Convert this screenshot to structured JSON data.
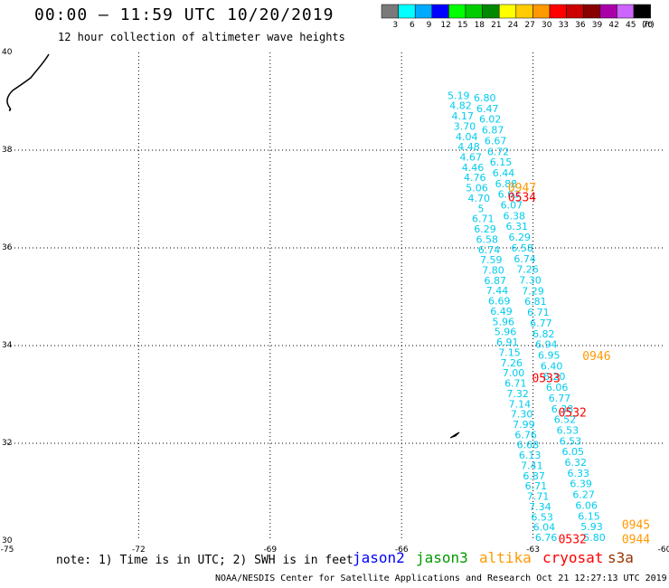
{
  "title": "00:00 – 11:59 UTC 10/20/2019",
  "subtitle": "12 hour collection of altimeter wave heights",
  "footer": "NOAA/NESDIS Center for Satellite Applications and Research    Oct 21 12:27:13 UTC 2019",
  "note": "note: 1) Time is in UTC; 2) SWH is in feet",
  "satellites": [
    {
      "name": "jason2",
      "color": "#0000ff"
    },
    {
      "name": "jason3",
      "color": "#009900"
    },
    {
      "name": "altika",
      "color": "#ff9900"
    },
    {
      "name": "cryosat",
      "color": "#ff0000"
    },
    {
      "name": "s3a",
      "color": "#993300"
    }
  ],
  "colorbar": {
    "unit": "(ft)",
    "bins": [
      {
        "label": "3",
        "color": "#7a7a7a"
      },
      {
        "label": "6",
        "color": "#00ffff"
      },
      {
        "label": "9",
        "color": "#00aaff"
      },
      {
        "label": "12",
        "color": "#0000ff"
      },
      {
        "label": "15",
        "color": "#00ff00"
      },
      {
        "label": "18",
        "color": "#00cc00"
      },
      {
        "label": "21",
        "color": "#008800"
      },
      {
        "label": "24",
        "color": "#ffff00"
      },
      {
        "label": "27",
        "color": "#ffcc00"
      },
      {
        "label": "30",
        "color": "#ff9900"
      },
      {
        "label": "33",
        "color": "#ff0000"
      },
      {
        "label": "36",
        "color": "#cc0000"
      },
      {
        "label": "39",
        "color": "#880000"
      },
      {
        "label": "42",
        "color": "#aa00aa"
      },
      {
        "label": "45",
        "color": "#cc66ff"
      },
      {
        "label": "70",
        "color": "#000000"
      }
    ]
  },
  "map": {
    "lon_range": [
      -75,
      -60
    ],
    "lat_range": [
      30,
      40
    ],
    "lon_ticks": [
      -75,
      -72,
      -69,
      -66,
      -63,
      -60
    ],
    "lat_ticks": [
      30,
      32,
      34,
      36,
      38,
      40
    ],
    "lon_grid": [
      -72,
      -69,
      -66,
      -63
    ],
    "lat_grid": [
      32,
      34,
      36,
      38
    ],
    "grid_style": "dotted",
    "wave_color": "#00ccee",
    "tracks": [
      {
        "name": "track-a",
        "lon_start": -64.7,
        "lat_start": 39.05,
        "lon_end": -62.7,
        "lat_end": 30.0,
        "values": [
          "5.19",
          "4.82",
          "4.17",
          "3.70",
          "4.04",
          "4.48",
          "4.67",
          "4.46",
          "4.76",
          "5.06",
          "4.70",
          "5",
          "6.71",
          "6.29",
          "6.58",
          "6.74",
          "7.59",
          "7.80",
          "6.87",
          "7.44",
          "6.69",
          "6.49",
          "5.96",
          "5.96",
          "6.91",
          "7.15",
          "7.26",
          "7.00",
          "6.71",
          "7.32",
          "7.14",
          "7.30",
          "7.99",
          "6.76",
          "6.68",
          "6.13",
          "7.41",
          "6.87",
          "6.71",
          "7.71",
          "7.34",
          "6.53",
          "6.04",
          "6.76"
        ]
      },
      {
        "name": "track-b",
        "lon_start": -64.1,
        "lat_start": 39.0,
        "lon_end": -61.6,
        "lat_end": 30.0,
        "values": [
          "6.80",
          "6.47",
          "6.02",
          "6.87",
          "6.67",
          "6.72",
          "6.15",
          "6.44",
          "6.88",
          "6.63",
          "6.07",
          "6.38",
          "6.31",
          "6.29",
          "6.58",
          "6.74",
          "7.26",
          "7.30",
          "7.29",
          "6.81",
          "6.71",
          "6.77",
          "6.82",
          "6.94",
          "6.95",
          "6.40",
          "6.20",
          "6.06",
          "6.77",
          "6.38",
          "6.52",
          "6.53",
          "6.53",
          "6.05",
          "6.32",
          "6.33",
          "6.39",
          "6.27",
          "6.06",
          "6.15",
          "5.93",
          "5.80"
        ]
      }
    ],
    "times": [
      {
        "label": "0947",
        "color": "#ff9900",
        "lon": -63.25,
        "lat": 37.15
      },
      {
        "label": "0534",
        "color": "#ff0000",
        "lon": -63.25,
        "lat": 36.95
      },
      {
        "label": "0946",
        "color": "#ff9900",
        "lon": -61.55,
        "lat": 33.7
      },
      {
        "label": "0533",
        "color": "#ff0000",
        "lon": -62.7,
        "lat": 33.25
      },
      {
        "label": "0532",
        "color": "#ff0000",
        "lon": -62.1,
        "lat": 32.55
      },
      {
        "label": "0945",
        "color": "#ff9900",
        "lon": -60.65,
        "lat": 30.25
      },
      {
        "label": "0532",
        "color": "#ff0000",
        "lon": -62.1,
        "lat": 29.95
      },
      {
        "label": "0944",
        "color": "#ff9900",
        "lon": -60.65,
        "lat": 29.95
      }
    ]
  }
}
